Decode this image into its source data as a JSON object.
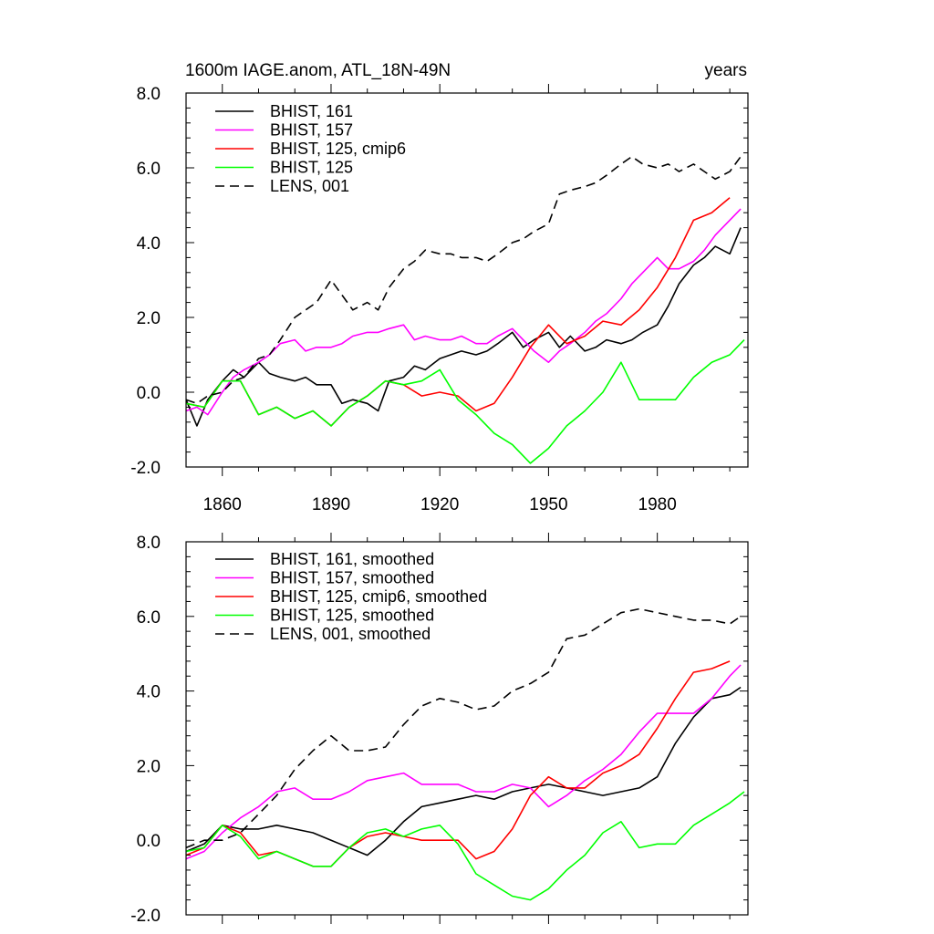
{
  "chart_data": [
    {
      "type": "line",
      "title": "1600m IAGE.anom, ATL_18N-49N",
      "units_label": "years",
      "xlim": [
        1850,
        2005
      ],
      "ylim": [
        -2.0,
        8.0
      ],
      "xticks": [
        1860,
        1890,
        1920,
        1950,
        1980
      ],
      "xtick_labels": [
        "1860",
        "1890",
        "1920",
        "1950",
        "1980"
      ],
      "yticks": [
        -2.0,
        0.0,
        2.0,
        4.0,
        6.0,
        8.0
      ],
      "ytick_labels": [
        "-2.0",
        "0.0",
        "2.0",
        "4.0",
        "6.0",
        "8.0"
      ],
      "series": [
        {
          "name": "BHIST, 161",
          "color": "#000000",
          "dash": "solid",
          "x": [
            1850,
            1853,
            1856,
            1860,
            1863,
            1866,
            1870,
            1873,
            1876,
            1880,
            1883,
            1886,
            1890,
            1893,
            1896,
            1900,
            1903,
            1906,
            1910,
            1913,
            1916,
            1920,
            1923,
            1926,
            1930,
            1933,
            1936,
            1940,
            1943,
            1946,
            1950,
            1953,
            1956,
            1960,
            1963,
            1966,
            1970,
            1973,
            1976,
            1980,
            1983,
            1986,
            1990,
            1993,
            1996,
            2000,
            2003
          ],
          "values": [
            -0.2,
            -0.9,
            -0.2,
            0.3,
            0.6,
            0.4,
            0.8,
            0.5,
            0.4,
            0.3,
            0.4,
            0.2,
            0.2,
            -0.3,
            -0.2,
            -0.3,
            -0.5,
            0.3,
            0.4,
            0.7,
            0.6,
            0.9,
            1.0,
            1.1,
            1.0,
            1.1,
            1.3,
            1.6,
            1.2,
            1.4,
            1.6,
            1.2,
            1.5,
            1.1,
            1.2,
            1.4,
            1.3,
            1.4,
            1.6,
            1.8,
            2.3,
            2.9,
            3.4,
            3.6,
            3.9,
            3.7,
            4.4
          ]
        },
        {
          "name": "BHIST, 157",
          "color": "#ff00ff",
          "dash": "solid",
          "x": [
            1850,
            1853,
            1856,
            1860,
            1863,
            1866,
            1870,
            1873,
            1876,
            1880,
            1883,
            1886,
            1890,
            1893,
            1896,
            1900,
            1903,
            1906,
            1910,
            1913,
            1916,
            1920,
            1923,
            1926,
            1930,
            1933,
            1936,
            1940,
            1943,
            1946,
            1950,
            1953,
            1956,
            1960,
            1963,
            1966,
            1970,
            1973,
            1976,
            1980,
            1983,
            1986,
            1990,
            1993,
            1996,
            2000,
            2003
          ],
          "values": [
            -0.5,
            -0.4,
            -0.6,
            0.0,
            0.4,
            0.6,
            0.8,
            1.0,
            1.3,
            1.4,
            1.1,
            1.2,
            1.2,
            1.3,
            1.5,
            1.6,
            1.6,
            1.7,
            1.8,
            1.4,
            1.5,
            1.4,
            1.4,
            1.5,
            1.3,
            1.3,
            1.5,
            1.7,
            1.4,
            1.1,
            0.8,
            1.1,
            1.3,
            1.6,
            1.9,
            2.1,
            2.5,
            2.9,
            3.2,
            3.6,
            3.3,
            3.3,
            3.5,
            3.8,
            4.2,
            4.6,
            4.9
          ]
        },
        {
          "name": "BHIST, 125, cmip6",
          "color": "#ff0000",
          "dash": "solid",
          "x": [
            1850,
            1855,
            1860,
            1865,
            1870,
            1875,
            1880,
            1885,
            1890,
            1895,
            1900,
            1905,
            1910,
            1915,
            1920,
            1925,
            1930,
            1935,
            1940,
            1945,
            1950,
            1955,
            1960,
            1965,
            1970,
            1975,
            1980,
            1985,
            1990,
            1995,
            2000
          ],
          "values": [
            -0.3,
            -0.4,
            0.3,
            0.3,
            -0.6,
            -0.4,
            -0.7,
            -0.5,
            -0.9,
            -0.4,
            -0.1,
            0.3,
            0.2,
            -0.1,
            0.0,
            -0.1,
            -0.5,
            -0.3,
            0.4,
            1.2,
            1.8,
            1.3,
            1.5,
            1.9,
            1.8,
            2.2,
            2.8,
            3.6,
            4.6,
            4.8,
            5.2
          ]
        },
        {
          "name": "BHIST, 125",
          "color": "#00ff00",
          "dash": "solid",
          "x": [
            1850,
            1855,
            1860,
            1865,
            1870,
            1875,
            1880,
            1885,
            1890,
            1895,
            1900,
            1905,
            1910,
            1915,
            1920,
            1925,
            1930,
            1935,
            1940,
            1945,
            1950,
            1955,
            1960,
            1965,
            1970,
            1975,
            1980,
            1985,
            1990,
            1995,
            2000,
            2004
          ],
          "values": [
            -0.3,
            -0.4,
            0.3,
            0.3,
            -0.6,
            -0.4,
            -0.7,
            -0.5,
            -0.9,
            -0.4,
            -0.1,
            0.3,
            0.2,
            0.3,
            0.6,
            -0.2,
            -0.6,
            -1.1,
            -1.4,
            -1.9,
            -1.5,
            -0.9,
            -0.5,
            0.0,
            0.8,
            -0.2,
            -0.2,
            -0.2,
            0.4,
            0.8,
            1.0,
            1.4
          ]
        },
        {
          "name": "LENS, 001",
          "color": "#000000",
          "dash": "dashed",
          "x": [
            1850,
            1853,
            1856,
            1860,
            1863,
            1866,
            1870,
            1873,
            1876,
            1880,
            1883,
            1886,
            1890,
            1893,
            1896,
            1900,
            1903,
            1906,
            1910,
            1913,
            1916,
            1920,
            1923,
            1926,
            1930,
            1933,
            1936,
            1940,
            1943,
            1946,
            1950,
            1953,
            1956,
            1960,
            1963,
            1966,
            1970,
            1973,
            1976,
            1980,
            1983,
            1986,
            1990,
            1993,
            1996,
            2000,
            2003
          ],
          "values": [
            -0.2,
            -0.3,
            -0.1,
            0.0,
            0.3,
            0.4,
            0.9,
            1.0,
            1.4,
            2.0,
            2.2,
            2.4,
            3.0,
            2.6,
            2.2,
            2.4,
            2.2,
            2.8,
            3.3,
            3.5,
            3.8,
            3.7,
            3.7,
            3.6,
            3.6,
            3.5,
            3.7,
            4.0,
            4.1,
            4.3,
            4.5,
            5.3,
            5.4,
            5.5,
            5.6,
            5.8,
            6.1,
            6.3,
            6.1,
            6.0,
            6.1,
            5.9,
            6.1,
            5.9,
            5.7,
            5.9,
            6.3
          ]
        }
      ]
    },
    {
      "type": "line",
      "title": "",
      "xlim": [
        1850,
        2005
      ],
      "ylim": [
        -2.0,
        8.0
      ],
      "xticks": [
        1860,
        1890,
        1920,
        1950,
        1980
      ],
      "xtick_labels": [],
      "yticks": [
        -2.0,
        0.0,
        2.0,
        4.0,
        6.0,
        8.0
      ],
      "ytick_labels": [
        "-2.0",
        "0.0",
        "2.0",
        "4.0",
        "6.0",
        "8.0"
      ],
      "series": [
        {
          "name": "BHIST, 161, smoothed",
          "color": "#000000",
          "dash": "solid",
          "x": [
            1850,
            1855,
            1860,
            1865,
            1870,
            1875,
            1880,
            1885,
            1890,
            1895,
            1900,
            1905,
            1910,
            1915,
            1920,
            1925,
            1930,
            1935,
            1940,
            1945,
            1950,
            1955,
            1960,
            1965,
            1970,
            1975,
            1980,
            1985,
            1990,
            1995,
            2000,
            2003
          ],
          "values": [
            -0.3,
            -0.1,
            0.4,
            0.3,
            0.3,
            0.4,
            0.3,
            0.2,
            0.0,
            -0.2,
            -0.4,
            0.0,
            0.5,
            0.9,
            1.0,
            1.1,
            1.2,
            1.1,
            1.3,
            1.4,
            1.5,
            1.4,
            1.3,
            1.2,
            1.3,
            1.4,
            1.7,
            2.6,
            3.3,
            3.8,
            3.9,
            4.1
          ]
        },
        {
          "name": "BHIST, 157, smoothed",
          "color": "#ff00ff",
          "dash": "solid",
          "x": [
            1850,
            1855,
            1860,
            1865,
            1870,
            1875,
            1880,
            1885,
            1890,
            1895,
            1900,
            1905,
            1910,
            1915,
            1920,
            1925,
            1930,
            1935,
            1940,
            1945,
            1950,
            1955,
            1960,
            1965,
            1970,
            1975,
            1980,
            1985,
            1990,
            1995,
            2000,
            2003
          ],
          "values": [
            -0.5,
            -0.3,
            0.2,
            0.6,
            0.9,
            1.3,
            1.4,
            1.1,
            1.1,
            1.3,
            1.6,
            1.7,
            1.8,
            1.5,
            1.5,
            1.5,
            1.3,
            1.3,
            1.5,
            1.4,
            0.9,
            1.2,
            1.6,
            1.9,
            2.3,
            2.9,
            3.4,
            3.4,
            3.4,
            3.8,
            4.4,
            4.7
          ]
        },
        {
          "name": "BHIST, 125, cmip6, smoothed",
          "color": "#ff0000",
          "dash": "solid",
          "x": [
            1850,
            1855,
            1860,
            1865,
            1870,
            1875,
            1880,
            1885,
            1890,
            1895,
            1900,
            1905,
            1910,
            1915,
            1920,
            1925,
            1930,
            1935,
            1940,
            1945,
            1950,
            1955,
            1960,
            1965,
            1970,
            1975,
            1980,
            1985,
            1990,
            1995,
            2000
          ],
          "values": [
            -0.4,
            -0.2,
            0.4,
            0.2,
            -0.4,
            -0.3,
            -0.5,
            -0.7,
            -0.7,
            -0.2,
            0.1,
            0.2,
            0.1,
            0.0,
            0.0,
            0.0,
            -0.5,
            -0.3,
            0.3,
            1.2,
            1.7,
            1.4,
            1.4,
            1.8,
            2.0,
            2.3,
            3.0,
            3.8,
            4.5,
            4.6,
            4.8
          ]
        },
        {
          "name": "BHIST, 125, smoothed",
          "color": "#00ff00",
          "dash": "solid",
          "x": [
            1850,
            1855,
            1860,
            1865,
            1870,
            1875,
            1880,
            1885,
            1890,
            1895,
            1900,
            1905,
            1910,
            1915,
            1920,
            1925,
            1930,
            1935,
            1940,
            1945,
            1950,
            1955,
            1960,
            1965,
            1970,
            1975,
            1980,
            1985,
            1990,
            1995,
            2000,
            2004
          ],
          "values": [
            -0.3,
            -0.2,
            0.4,
            0.1,
            -0.5,
            -0.3,
            -0.5,
            -0.7,
            -0.7,
            -0.2,
            0.2,
            0.3,
            0.1,
            0.3,
            0.4,
            -0.1,
            -0.9,
            -1.2,
            -1.5,
            -1.6,
            -1.3,
            -0.8,
            -0.4,
            0.2,
            0.5,
            -0.2,
            -0.1,
            -0.1,
            0.4,
            0.7,
            1.0,
            1.3
          ]
        },
        {
          "name": "LENS, 001, smoothed",
          "color": "#000000",
          "dash": "dashed",
          "x": [
            1850,
            1855,
            1860,
            1865,
            1870,
            1875,
            1880,
            1885,
            1890,
            1895,
            1900,
            1905,
            1910,
            1915,
            1920,
            1925,
            1930,
            1935,
            1940,
            1945,
            1950,
            1955,
            1960,
            1965,
            1970,
            1975,
            1980,
            1985,
            1990,
            1995,
            2000,
            2003
          ],
          "values": [
            -0.2,
            0.0,
            0.0,
            0.2,
            0.7,
            1.2,
            1.9,
            2.4,
            2.8,
            2.4,
            2.4,
            2.5,
            3.1,
            3.6,
            3.8,
            3.7,
            3.5,
            3.6,
            4.0,
            4.2,
            4.5,
            5.4,
            5.5,
            5.8,
            6.1,
            6.2,
            6.1,
            6.0,
            5.9,
            5.9,
            5.8,
            6.0
          ]
        }
      ]
    }
  ]
}
